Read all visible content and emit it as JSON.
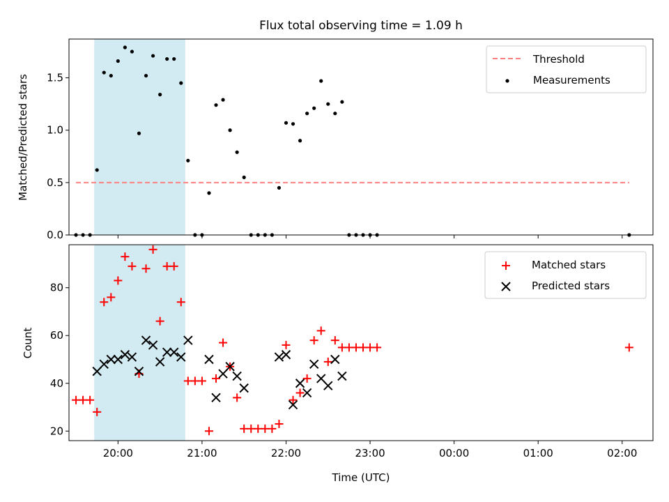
{
  "chart_data": {
    "title": "Flux total observing time = 1.09 h",
    "xlabel": "Time (UTC)",
    "x_tick_labels": [
      "20:00",
      "21:00",
      "22:00",
      "23:00",
      "00:00",
      "01:00",
      "02:00"
    ],
    "shaded_interval": [
      "19:43",
      "20:48"
    ],
    "colors": {
      "threshold": "#ff7f7f",
      "measurements": "#000000",
      "matched": "#ff0000",
      "predicted": "#000000",
      "shade": "#add8e6"
    },
    "panels": [
      {
        "type": "scatter",
        "ylabel": "Matched/Predicted stars",
        "ylim": [
          0,
          1.87
        ],
        "yticks": [
          "0.0",
          "0.5",
          "1.0",
          "1.5"
        ],
        "legend": {
          "position": "top-right",
          "entries": [
            "Threshold",
            "Measurements"
          ]
        },
        "threshold": {
          "name": "Threshold",
          "y": 0.5,
          "x_range": [
            "19:30",
            "02:05"
          ]
        },
        "series": [
          {
            "name": "Measurements",
            "x": [
              "19:30",
              "19:35",
              "19:40",
              "19:45",
              "19:50",
              "19:55",
              "20:00",
              "20:05",
              "20:10",
              "20:15",
              "20:20",
              "20:25",
              "20:30",
              "20:35",
              "20:40",
              "20:45",
              "20:50",
              "20:55",
              "21:00",
              "21:05",
              "21:10",
              "21:15",
              "21:20",
              "21:25",
              "21:30",
              "21:35",
              "21:40",
              "21:45",
              "21:50",
              "21:55",
              "22:00",
              "22:05",
              "22:10",
              "22:15",
              "22:20",
              "22:25",
              "22:30",
              "22:35",
              "22:40",
              "22:45",
              "22:50",
              "22:55",
              "23:00",
              "23:05",
              "02:05"
            ],
            "y": [
              0,
              0,
              0,
              0.62,
              1.55,
              1.52,
              1.66,
              1.79,
              1.75,
              0.97,
              1.52,
              1.71,
              1.34,
              1.68,
              1.68,
              1.45,
              0.71,
              0,
              0,
              0.4,
              1.24,
              1.29,
              1.0,
              0.79,
              0.55,
              0,
              0,
              0,
              0,
              0.45,
              1.07,
              1.06,
              0.9,
              1.16,
              1.21,
              1.47,
              1.25,
              1.16,
              1.27,
              0,
              0,
              0,
              0,
              0,
              0
            ]
          }
        ]
      },
      {
        "type": "scatter",
        "ylabel": "Count",
        "ylim": [
          16,
          98
        ],
        "yticks": [
          "20",
          "40",
          "60",
          "80"
        ],
        "legend": {
          "position": "top-right",
          "entries": [
            "Matched stars",
            "Predicted stars"
          ]
        },
        "series": [
          {
            "name": "Matched stars",
            "x": [
              "19:30",
              "19:35",
              "19:40",
              "19:45",
              "19:50",
              "19:55",
              "20:00",
              "20:05",
              "20:10",
              "20:15",
              "20:20",
              "20:25",
              "20:30",
              "20:35",
              "20:40",
              "20:45",
              "20:50",
              "20:55",
              "21:00",
              "21:05",
              "21:10",
              "21:15",
              "21:20",
              "21:25",
              "21:30",
              "21:35",
              "21:40",
              "21:45",
              "21:50",
              "21:55",
              "22:00",
              "22:05",
              "22:10",
              "22:15",
              "22:20",
              "22:25",
              "22:30",
              "22:35",
              "22:40",
              "22:45",
              "22:50",
              "22:55",
              "23:00",
              "23:05",
              "02:05"
            ],
            "y": [
              33,
              33,
              33,
              28,
              74,
              76,
              83,
              93,
              89,
              44,
              88,
              96,
              66,
              89,
              89,
              74,
              41,
              41,
              41,
              20,
              42,
              57,
              47,
              34,
              21,
              21,
              21,
              21,
              21,
              23,
              56,
              33,
              36,
              42,
              58,
              62,
              49,
              58,
              55,
              55,
              55,
              55,
              55,
              55,
              55
            ]
          },
          {
            "name": "Predicted stars",
            "x": [
              "19:45",
              "19:50",
              "19:55",
              "20:00",
              "20:05",
              "20:10",
              "20:15",
              "20:20",
              "20:25",
              "20:30",
              "20:35",
              "20:40",
              "20:45",
              "20:50",
              "21:05",
              "21:10",
              "21:15",
              "21:20",
              "21:25",
              "21:30",
              "21:55",
              "22:00",
              "22:05",
              "22:10",
              "22:15",
              "22:20",
              "22:25",
              "22:30",
              "22:35",
              "22:40"
            ],
            "y": [
              45,
              48,
              50,
              50,
              52,
              51,
              45,
              58,
              56,
              49,
              53,
              53,
              51,
              58,
              50,
              34,
              44,
              47,
              43,
              38,
              51,
              52,
              31,
              40,
              36,
              48,
              42,
              39,
              50,
              43
            ]
          }
        ]
      }
    ]
  }
}
